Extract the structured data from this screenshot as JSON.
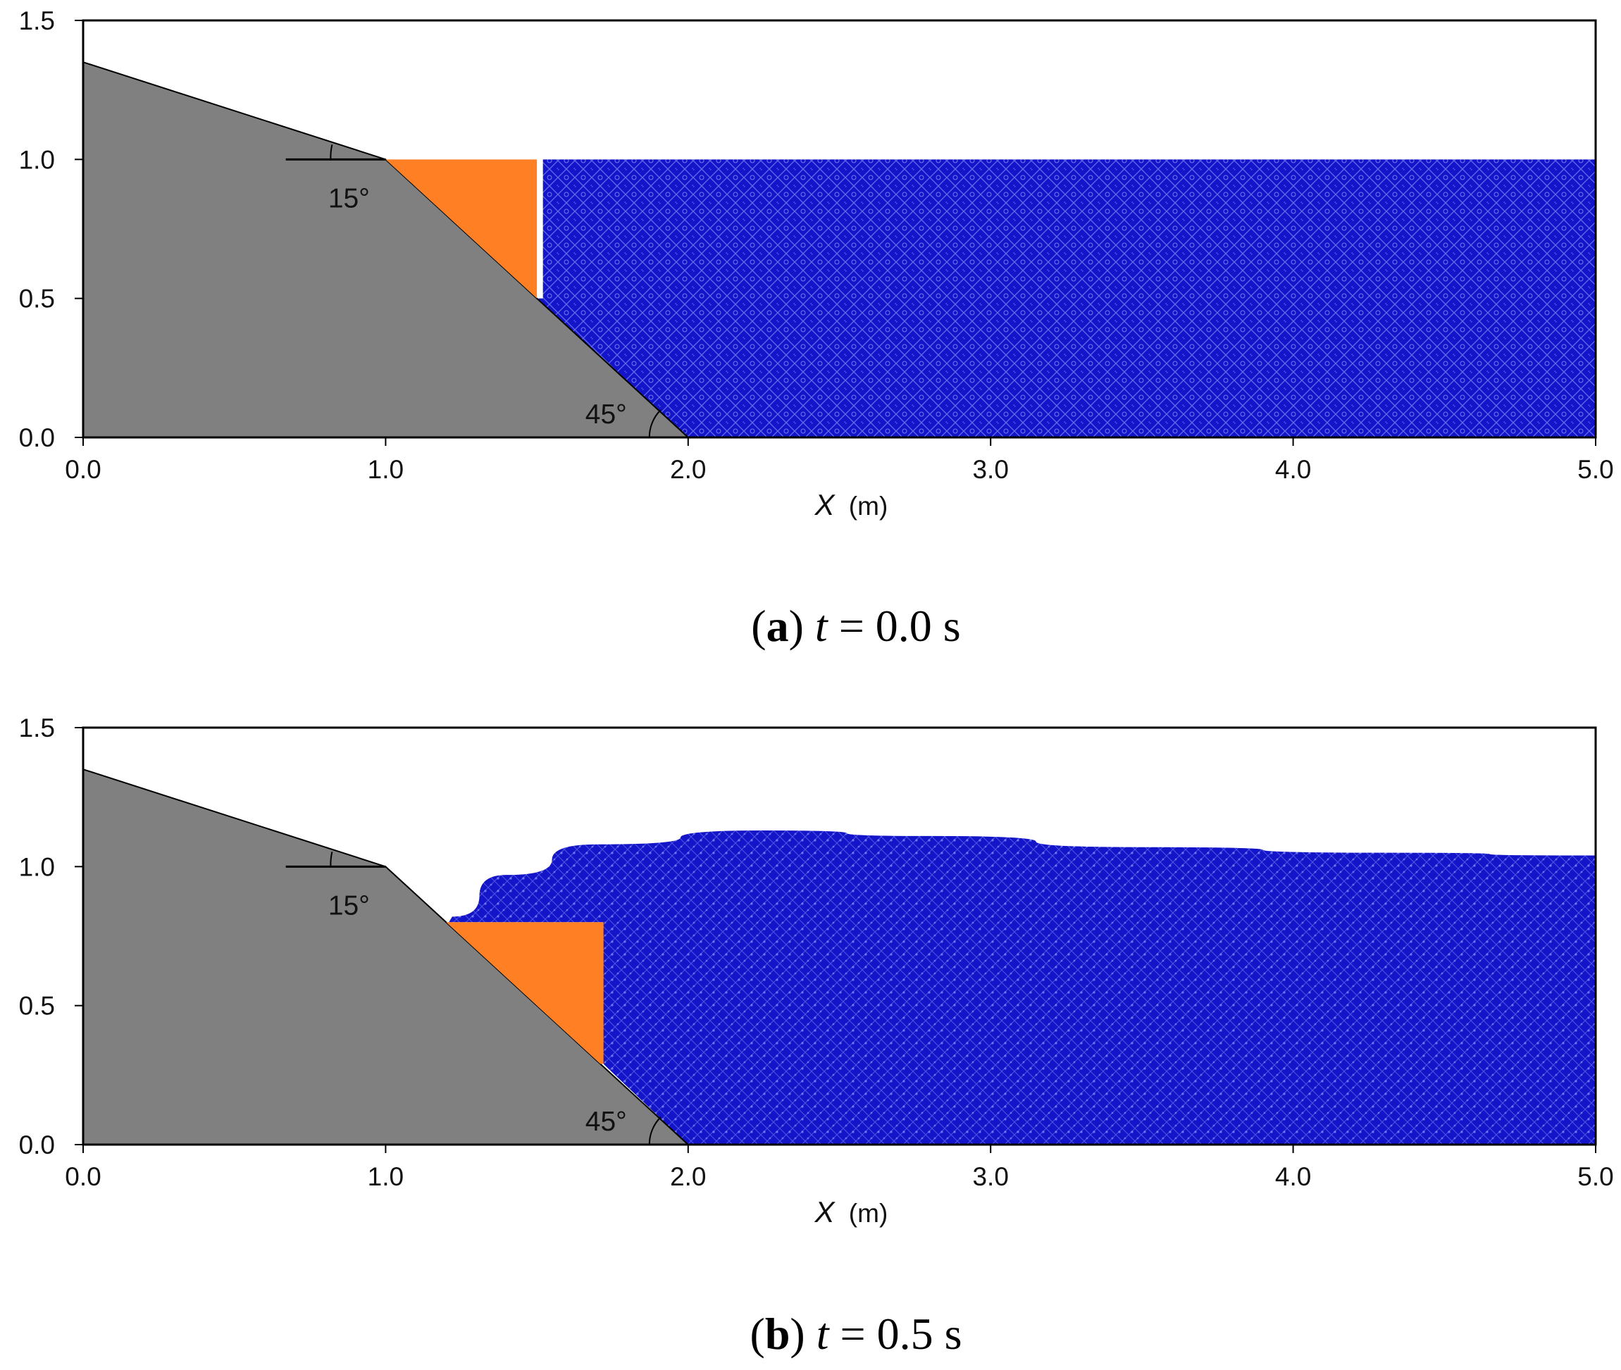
{
  "colors": {
    "slope": "#808080",
    "block": "#ff7f24",
    "water": "#1414c8",
    "water_texture": "#7a86f5",
    "frame": "#000000"
  },
  "axes": {
    "x_ticks": [
      "0.0",
      "1.0",
      "2.0",
      "3.0",
      "4.0",
      "5.0"
    ],
    "y_ticks": [
      "0.0",
      "0.5",
      "1.0",
      "1.5"
    ],
    "x_label_var": "X",
    "x_label_unit": "(m)",
    "xlim": [
      0,
      5
    ],
    "ylim": [
      0,
      1.5
    ]
  },
  "geometry": {
    "slope_profile": [
      [
        0,
        1.35
      ],
      [
        1.0,
        1.0
      ],
      [
        2.0,
        0.0
      ]
    ],
    "upper_angle": "15°",
    "lower_angle": "45°"
  },
  "panels": [
    {
      "id": "a",
      "caption_letter": "a",
      "caption_var": "t",
      "caption_value": " = 0.0 s",
      "block": {
        "top_left": [
          1.0,
          1.0
        ],
        "top_right": [
          1.5,
          1.0
        ],
        "bottom_right": [
          1.5,
          0.5
        ]
      },
      "water_surface": [
        [
          1.52,
          1.0
        ],
        [
          5.0,
          1.0
        ]
      ],
      "water_left_edge": "vertical"
    },
    {
      "id": "b",
      "caption_letter": "b",
      "caption_var": "t",
      "caption_value": " = 0.5 s",
      "block": {
        "top_left": [
          1.2,
          0.8
        ],
        "top_right": [
          1.72,
          0.8
        ],
        "bottom_right": [
          1.72,
          0.29
        ]
      },
      "water_surface": [
        [
          1.22,
          0.82
        ],
        [
          1.4,
          0.97
        ],
        [
          1.7,
          1.08
        ],
        [
          2.25,
          1.13
        ],
        [
          2.8,
          1.11
        ],
        [
          3.5,
          1.07
        ],
        [
          4.3,
          1.05
        ],
        [
          5.0,
          1.04
        ]
      ],
      "water_left_edge": "block"
    }
  ]
}
